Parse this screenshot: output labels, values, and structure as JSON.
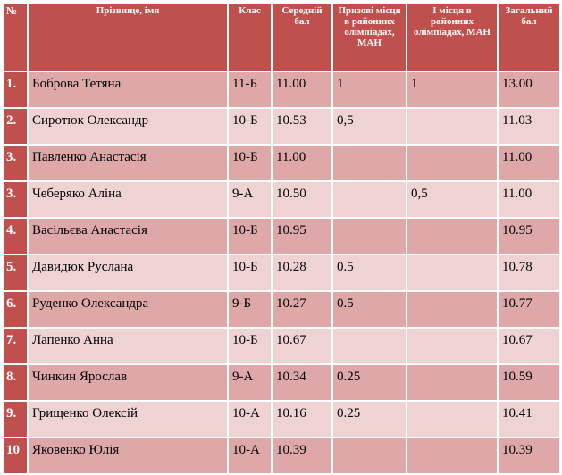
{
  "headers": {
    "num": "№",
    "name": "Прізвище, імя",
    "class": "Клас",
    "avg": "Середній бал",
    "prize": "Призові місця в районних олімпіадах, МАН",
    "first": "І місця в районних олімпіадах, МАН",
    "total": "Загальний бал"
  },
  "rows": [
    {
      "num": "1.",
      "name": "Боброва Тетяна",
      "class": "11-Б",
      "avg": "11.00",
      "prize": "1",
      "first": "1",
      "total": "13.00"
    },
    {
      "num": "2.",
      "name": "Сиротюк Олександр",
      "class": "10-Б",
      "avg": "10.53",
      "prize": "0,5",
      "first": "",
      "total": "11.03"
    },
    {
      "num": "3.",
      "name": "Павленко Анастасія",
      "class": "10-Б",
      "avg": "11.00",
      "prize": "",
      "first": "",
      "total": "11.00"
    },
    {
      "num": "3.",
      "name": "Чеберяко Аліна",
      "class": "9-А",
      "avg": "10.50",
      "prize": "",
      "first": "0,5",
      "total": "11.00"
    },
    {
      "num": "4.",
      "name": "Васільєва Анастасія",
      "class": "10-Б",
      "avg": "10.95",
      "prize": "",
      "first": "",
      "total": "10.95"
    },
    {
      "num": "5.",
      "name": "Давидюк Руслана",
      "class": "10-Б",
      "avg": "10.28",
      "prize": "0.5",
      "first": "",
      "total": "10.78"
    },
    {
      "num": "6.",
      "name": "Руденко Олександра",
      "class": "9-Б",
      "avg": "10.27",
      "prize": "0.5",
      "first": "",
      "total": "10.77"
    },
    {
      "num": "7.",
      "name": "Лапенко Анна",
      "class": "10-Б",
      "avg": "10.67",
      "prize": "",
      "first": "",
      "total": "10.67"
    },
    {
      "num": "8.",
      "name": "Чинкин Ярослав",
      "class": "9-А",
      "avg": "10.34",
      "prize": "0.25",
      "first": "",
      "total": "10.59"
    },
    {
      "num": "9.",
      "name": "Грищенко Олексій",
      "class": "10-А",
      "avg": "10.16",
      "prize": "0.25",
      "first": "",
      "total": "10.41"
    },
    {
      "num": "10",
      "name": "Яковенко Юлія",
      "class": "10-А",
      "avg": "10.39",
      "prize": "",
      "first": "",
      "total": "10.39"
    }
  ],
  "colors": {
    "header": "#c0504d",
    "row_dark": "#dfa8a8",
    "row_light": "#efd3d2"
  }
}
